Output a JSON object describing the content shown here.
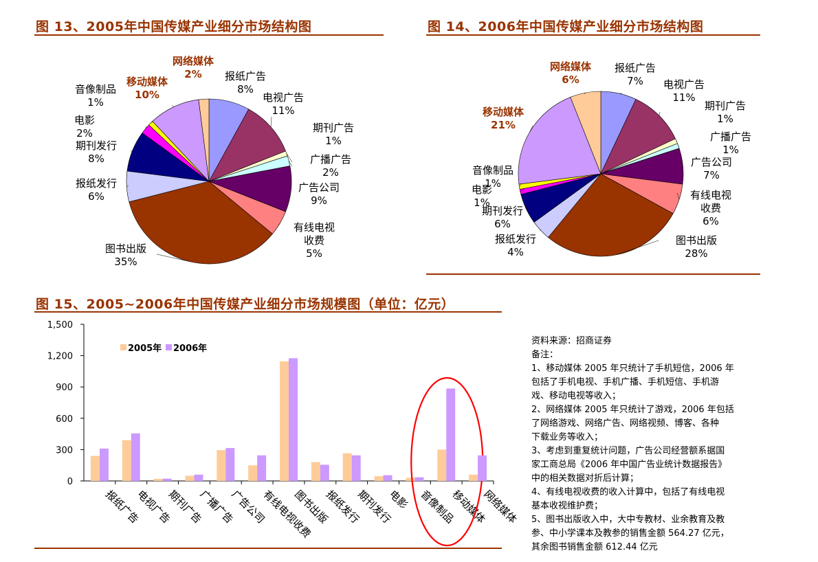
{
  "chart_titles": {
    "fig13": "图 13、2005年中国传媒产业细分市场结构图",
    "fig14": "图 14、2006年中国传媒产业细分市场结构图",
    "fig15": "图 15、2005~2006年中国传媒产业细分市场规模图（单位：亿元）"
  },
  "chart_data": [
    {
      "type": "pie",
      "title": "图 13、2005年中国传媒产业细分市场结构图",
      "slices": [
        {
          "name": "报纸广告",
          "value": 8,
          "label": "8%",
          "color": "#9999FF"
        },
        {
          "name": "电视广告",
          "value": 11,
          "label": "11%",
          "color": "#993366"
        },
        {
          "name": "期刊广告",
          "value": 1,
          "label": "1%",
          "color": "#FFFFCC"
        },
        {
          "name": "广播广告",
          "value": 2,
          "label": "2%",
          "color": "#CCFFFF"
        },
        {
          "name": "广告公司",
          "value": 9,
          "label": "9%",
          "color": "#660066"
        },
        {
          "name": "有线电视收费",
          "value": 5,
          "label": "5%",
          "color": "#FF8080"
        },
        {
          "name": "图书出版",
          "value": 35,
          "label": "35%",
          "color": "#993300"
        },
        {
          "name": "报纸发行",
          "value": 6,
          "label": "6%",
          "color": "#CCCCFF"
        },
        {
          "name": "期刊发行",
          "value": 8,
          "label": "8%",
          "color": "#000080"
        },
        {
          "name": "电影",
          "value": 2,
          "label": "2%",
          "color": "#FF00FF"
        },
        {
          "name": "音像制品",
          "value": 1,
          "label": "1%",
          "color": "#FFFF00"
        },
        {
          "name": "移动媒体",
          "value": 10,
          "label": "10%",
          "color": "#CC99FF"
        },
        {
          "name": "网络媒体",
          "value": 2,
          "label": "2%",
          "color": "#FFCC99"
        }
      ]
    },
    {
      "type": "pie",
      "title": "图 14、2006年中国传媒产业细分市场结构图",
      "slices": [
        {
          "name": "报纸广告",
          "value": 7,
          "label": "7%",
          "color": "#9999FF"
        },
        {
          "name": "电视广告",
          "value": 11,
          "label": "11%",
          "color": "#993366"
        },
        {
          "name": "期刊广告",
          "value": 1,
          "label": "1%",
          "color": "#FFFFCC"
        },
        {
          "name": "广播广告",
          "value": 1,
          "label": "1%",
          "color": "#CCFFFF"
        },
        {
          "name": "广告公司",
          "value": 7,
          "label": "7%",
          "color": "#660066"
        },
        {
          "name": "有线电视收费",
          "value": 6,
          "label": "6%",
          "color": "#FF8080"
        },
        {
          "name": "图书出版",
          "value": 28,
          "label": "28%",
          "color": "#993300"
        },
        {
          "name": "报纸发行",
          "value": 4,
          "label": "4%",
          "color": "#CCCCFF"
        },
        {
          "name": "期刊发行",
          "value": 6,
          "label": "6%",
          "color": "#000080"
        },
        {
          "name": "电影",
          "value": 1,
          "label": "1%",
          "color": "#FF00FF"
        },
        {
          "name": "音像制品",
          "value": 1,
          "label": "1%",
          "color": "#FFFF00"
        },
        {
          "name": "移动媒体",
          "value": 21,
          "label": "21%",
          "color": "#CC99FF"
        },
        {
          "name": "网络媒体",
          "value": 6,
          "label": "6%",
          "color": "#FFCC99"
        }
      ]
    },
    {
      "type": "bar",
      "title": "图 15、2005~2006年中国传媒产业细分市场规模图（单位：亿元）",
      "categories": [
        "报纸广告",
        "电视广告",
        "期刊广告",
        "广播广告",
        "广告公司",
        "有线电视收费",
        "图书出版",
        "报纸发行",
        "期刊发行",
        "电影",
        "音像制品",
        "移动媒体",
        "网络媒体"
      ],
      "series": [
        {
          "name": "2005年",
          "color": "#FFCC99",
          "values": [
            240,
            390,
            20,
            50,
            295,
            150,
            1145,
            180,
            265,
            45,
            30,
            300,
            60
          ]
        },
        {
          "name": "2006年",
          "color": "#CC99FF",
          "values": [
            310,
            455,
            22,
            60,
            315,
            245,
            1175,
            155,
            245,
            55,
            35,
            885,
            245
          ]
        }
      ],
      "ylim": [
        0,
        1500
      ],
      "yticks": [
        "1,500",
        "1,200",
        "900",
        "600",
        "300",
        "0"
      ],
      "ytick_values": [
        1500,
        1200,
        900,
        600,
        300,
        0
      ],
      "highlight": "移动媒体"
    }
  ],
  "notes": {
    "source": "资料来源：招商证券",
    "heading": "备注：",
    "items": [
      "1、移动媒体 2005 年只统计了手机短信，2006 年\n包括了手机电视、手机广播、手机短信、手机游\n戏、移动电视等收入；",
      "2、网络媒体 2005 年只统计了游戏，2006 年包括\n了网络游戏、网络广告、网络视频、博客、各种\n下载业务等收入；",
      "3、考虑到重复统计问题，广告公司经营额系据国\n家工商总局《2006 年中国广告业统计数据报告》\n中的相关数据对折后计算；",
      "4、有线电视收费的收入计算中，包括了有线电视\n基本收视维护费；",
      "5、图书出版收入中，大中专教材、业余教育及教\n参、中小学课本及教参的销售金额 564.27 亿元，\n其余图书销售金额 612.44 亿元"
    ]
  }
}
